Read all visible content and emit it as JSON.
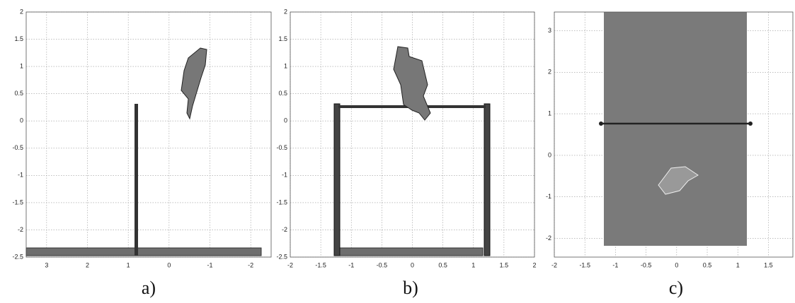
{
  "chart_data": [
    {
      "type": "scene",
      "caption": "a)",
      "xlim": [
        3.5,
        -2.5
      ],
      "ylim": [
        -2.5,
        2
      ],
      "xticks": [
        3,
        2,
        1,
        0,
        -1,
        -2
      ],
      "yticks": [
        -2.5,
        -2,
        -1.5,
        -1,
        -0.5,
        0,
        0.5,
        1,
        1.5,
        2
      ],
      "grid": true
    },
    {
      "type": "scene",
      "caption": "b)",
      "xlim": [
        -2,
        2
      ],
      "ylim": [
        -2.5,
        2
      ],
      "xticks": [
        -2,
        -1.5,
        -1,
        -0.5,
        0,
        0.5,
        1,
        1.5,
        2
      ],
      "yticks": [
        -2.5,
        -2,
        -1.5,
        -1,
        -0.5,
        0,
        0.5,
        1,
        1.5,
        2
      ],
      "grid": true
    },
    {
      "type": "scene",
      "caption": "c)",
      "xlim": [
        -2,
        1.9
      ],
      "ylim": [
        -2.45,
        3.45
      ],
      "xticks": [
        -2,
        -1.5,
        -1,
        -0.5,
        0,
        0.5,
        1,
        1.5
      ],
      "yticks": [
        -2,
        -1,
        0,
        1,
        2,
        3
      ],
      "grid": true
    }
  ]
}
